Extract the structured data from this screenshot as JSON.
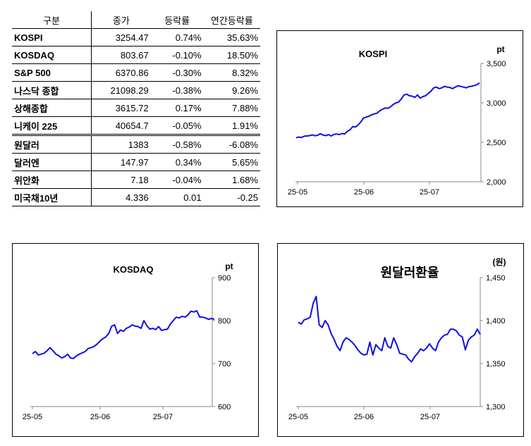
{
  "table": {
    "headers": [
      "구분",
      "종가",
      "등락률",
      "연간등락률"
    ],
    "rows": [
      {
        "name": "KOSPI",
        "close": "3254.47",
        "change": "0.74%",
        "ytd": "35.63%"
      },
      {
        "name": "KOSDAQ",
        "close": "803.67",
        "change": "-0.10%",
        "ytd": "18.50%"
      },
      {
        "name": "S&P 500",
        "close": "6370.86",
        "change": "-0.30%",
        "ytd": "8.32%"
      },
      {
        "name": "나스닥 종합",
        "close": "21098.29",
        "change": "-0.38%",
        "ytd": "9.26%"
      },
      {
        "name": "상해종합",
        "close": "3615.72",
        "change": "0.17%",
        "ytd": "7.88%"
      },
      {
        "name": "니케이 225",
        "close": "40654.7",
        "change": "-0.05%",
        "ytd": "1.91%"
      },
      {
        "name": "원달러",
        "close": "1383",
        "change": "-0.58%",
        "ytd": "-6.08%"
      },
      {
        "name": "달러엔",
        "close": "147.97",
        "change": "0.34%",
        "ytd": "5.65%"
      },
      {
        "name": "위안화",
        "close": "7.18",
        "change": "-0.04%",
        "ytd": "1.68%"
      },
      {
        "name": "미국채10년",
        "close": "4.336",
        "change": "0.01",
        "ytd": "-0.25"
      }
    ]
  },
  "chart_data": [
    {
      "type": "line",
      "title": "KOSPI",
      "unit": "pt",
      "ylim": [
        2000,
        3500
      ],
      "yticks": [
        "2,000",
        "2,500",
        "3,000",
        "3,500"
      ],
      "xticks": [
        "25-05",
        "25-06",
        "25-07"
      ],
      "color": "#1010e0",
      "series": [
        {
          "values": [
            2558,
            2567,
            2562,
            2578,
            2580,
            2585,
            2595,
            2583,
            2590,
            2610,
            2592,
            2585,
            2597,
            2580,
            2600,
            2605,
            2598,
            2612,
            2605,
            2640,
            2660,
            2700,
            2695,
            2720,
            2760,
            2810,
            2820,
            2830,
            2850,
            2860,
            2870,
            2900,
            2920,
            2935,
            2930,
            2950,
            2980,
            3000,
            3010,
            3050,
            3100,
            3110,
            3090,
            3085,
            3070,
            3100,
            3060,
            3080,
            3090,
            3120,
            3150,
            3190,
            3200,
            3180,
            3190,
            3210,
            3200,
            3195,
            3180,
            3200,
            3215,
            3210,
            3200,
            3190,
            3205,
            3210,
            3220,
            3230,
            3254
          ]
        }
      ]
    },
    {
      "type": "line",
      "title": "KOSDAQ",
      "unit": "pt",
      "ylim": [
        600,
        900
      ],
      "yticks": [
        "600",
        "700",
        "800",
        "900"
      ],
      "xticks": [
        "25-05",
        "25-06",
        "25-07"
      ],
      "color": "#1010e0",
      "series": [
        {
          "values": [
            723,
            728,
            720,
            722,
            724,
            730,
            737,
            730,
            722,
            718,
            713,
            716,
            722,
            713,
            712,
            718,
            722,
            725,
            728,
            735,
            737,
            740,
            745,
            752,
            758,
            762,
            770,
            787,
            790,
            770,
            778,
            775,
            782,
            785,
            790,
            787,
            786,
            782,
            800,
            788,
            780,
            782,
            779,
            786,
            777,
            779,
            780,
            792,
            800,
            808,
            806,
            810,
            808,
            813,
            822,
            820,
            823,
            808,
            808,
            806,
            803,
            805,
            803
          ]
        }
      ]
    },
    {
      "type": "line",
      "title": "원달러환율",
      "unit": "(원)",
      "ylim": [
        1300,
        1450
      ],
      "yticks": [
        "1,300",
        "1,350",
        "1,400",
        "1,450"
      ],
      "xticks": [
        "25-05",
        "25-06",
        "25-07"
      ],
      "color": "#1010e0",
      "series": [
        {
          "values": [
            1398,
            1396,
            1401,
            1402,
            1404,
            1420,
            1428,
            1395,
            1392,
            1400,
            1395,
            1385,
            1378,
            1370,
            1365,
            1375,
            1380,
            1378,
            1375,
            1371,
            1366,
            1362,
            1360,
            1361,
            1375,
            1360,
            1372,
            1368,
            1365,
            1380,
            1370,
            1368,
            1380,
            1372,
            1362,
            1361,
            1360,
            1355,
            1352,
            1358,
            1362,
            1367,
            1365,
            1368,
            1373,
            1368,
            1365,
            1375,
            1380,
            1383,
            1384,
            1390,
            1390,
            1388,
            1383,
            1381,
            1366,
            1377,
            1381,
            1383,
            1390,
            1384
          ]
        }
      ]
    }
  ]
}
